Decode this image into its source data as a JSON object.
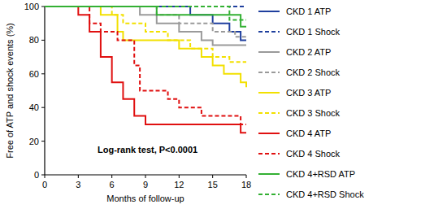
{
  "chart_data": {
    "type": "line",
    "x_label": "Months of follow-up",
    "y_label": "Free of ATP and shock events (%)",
    "annotation": "Log-rank test, P<0.0001",
    "xlim": [
      0,
      18
    ],
    "xticks": [
      0,
      3,
      6,
      9,
      12,
      15,
      18
    ],
    "ylim": [
      0,
      100
    ],
    "yticks": [
      0,
      20,
      40,
      60,
      80,
      100
    ],
    "grid": false,
    "legend": "right",
    "series": [
      {
        "name": "CKD 1 ATP",
        "color": "#1f3f9e",
        "line_style": "solid",
        "x": [
          0,
          13,
          15,
          16.5,
          17.5,
          18
        ],
        "values": [
          100,
          95,
          90,
          85,
          80,
          80
        ]
      },
      {
        "name": "CKD 1 Shock",
        "color": "#1f3f9e",
        "line_style": "dashed",
        "x": [
          0,
          18
        ],
        "values": [
          100,
          100
        ]
      },
      {
        "name": "CKD 2 ATP",
        "color": "#9a9a9a",
        "line_style": "solid",
        "x": [
          0,
          8.5,
          10,
          12,
          14,
          15,
          18
        ],
        "values": [
          100,
          95,
          90,
          85,
          80,
          77,
          77
        ]
      },
      {
        "name": "CKD 2 Shock",
        "color": "#9a9a9a",
        "line_style": "dashed",
        "x": [
          0,
          10,
          12,
          15,
          17,
          18
        ],
        "values": [
          100,
          95,
          90,
          85,
          82,
          82
        ]
      },
      {
        "name": "CKD 3 ATP",
        "color": "#f2e000",
        "line_style": "solid",
        "x": [
          0,
          5,
          6.5,
          7,
          12,
          14,
          15,
          16,
          17.5,
          18
        ],
        "values": [
          100,
          95,
          85,
          80,
          75,
          70,
          65,
          60,
          55,
          52
        ]
      },
      {
        "name": "CKD 3 Shock",
        "color": "#f2e000",
        "line_style": "dashed",
        "x": [
          0,
          6,
          7,
          9,
          11,
          13,
          15,
          16.5,
          18
        ],
        "values": [
          100,
          95,
          90,
          85,
          80,
          75,
          70,
          67,
          67
        ]
      },
      {
        "name": "CKD 4 ATP",
        "color": "#e01010",
        "line_style": "solid",
        "x": [
          0,
          3,
          4,
          5,
          6,
          7,
          8,
          9,
          17.5,
          18
        ],
        "values": [
          100,
          95,
          85,
          70,
          55,
          45,
          35,
          30,
          25,
          25
        ]
      },
      {
        "name": "CKD 4 Shock",
        "color": "#e01010",
        "line_style": "dashed",
        "x": [
          0,
          4,
          5,
          6.5,
          8,
          8.5,
          11,
          12,
          14,
          17.5,
          18
        ],
        "values": [
          100,
          90,
          85,
          80,
          65,
          50,
          45,
          40,
          35,
          30,
          30
        ]
      },
      {
        "name": "CKD 4+RSD ATP",
        "color": "#33b033",
        "line_style": "solid",
        "x": [
          0,
          10,
          17.5,
          18
        ],
        "values": [
          100,
          95,
          88,
          88
        ]
      },
      {
        "name": "CKD 4+RSD Shock",
        "color": "#33b033",
        "line_style": "dashed",
        "x": [
          0,
          16.5,
          18
        ],
        "values": [
          100,
          92,
          92
        ]
      }
    ]
  }
}
